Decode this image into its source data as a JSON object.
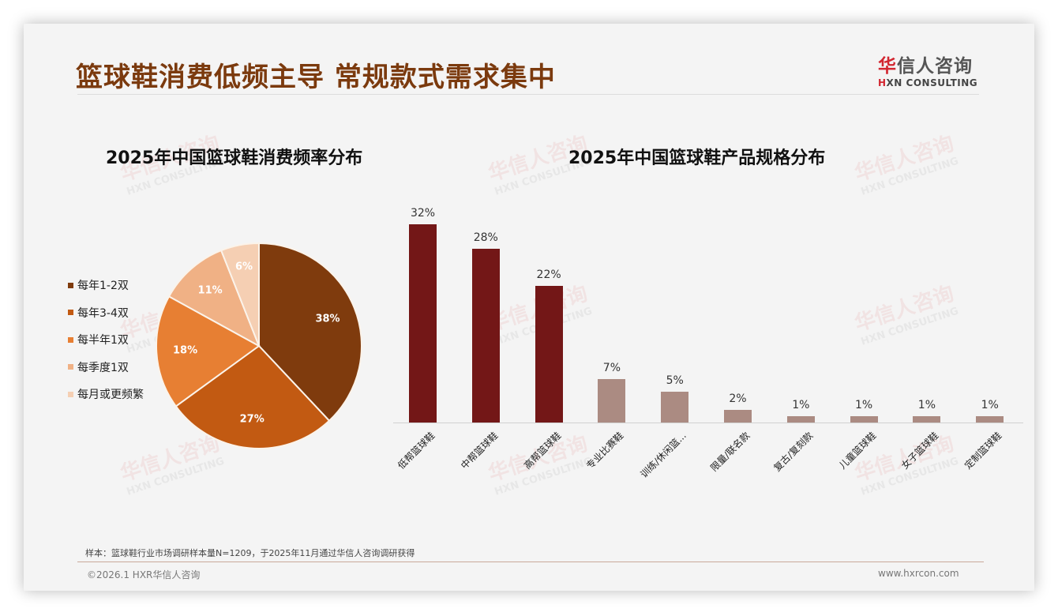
{
  "header": {
    "title": "篮球鞋消费低频主导 常规款式需求集中",
    "logo_cn_first": "华",
    "logo_cn_rest": "信人咨询",
    "logo_en_first": "H",
    "logo_en_rest": "XN CONSULTING"
  },
  "watermark": {
    "cn": "华信人咨询",
    "en": "HXN CONSULTING"
  },
  "pie_chart": {
    "title": "2025年中国篮球鞋消费频率分布"
  },
  "bar_chart": {
    "title": "2025年中国篮球鞋产品规格分布"
  },
  "chart_data": [
    {
      "type": "pie",
      "title": "2025年中国篮球鞋消费频率分布",
      "legend_position": "left",
      "categories": [
        "每年1-2双",
        "每年3-4双",
        "每半年1双",
        "每季度1双",
        "每月或更频繁"
      ],
      "values": [
        38,
        27,
        18,
        11,
        6
      ],
      "labels": [
        "38%",
        "27%",
        "18%",
        "11%",
        "6%"
      ],
      "colors": [
        "#7f3b0d",
        "#c25a12",
        "#e77f33",
        "#f0b185",
        "#f5cfb3"
      ]
    },
    {
      "type": "bar",
      "title": "2025年中国篮球鞋产品规格分布",
      "xlabel": "",
      "ylabel": "",
      "grid": false,
      "categories": [
        "低帮篮球鞋",
        "中帮篮球鞋",
        "高帮篮球鞋",
        "专业比赛鞋",
        "训练/休闲篮...",
        "限量/联名款",
        "复古/复刻款",
        "儿童篮球鞋",
        "女子篮球鞋",
        "定制篮球鞋"
      ],
      "values": [
        32,
        28,
        22,
        7,
        5,
        2,
        1,
        1,
        1,
        1
      ],
      "labels": [
        "32%",
        "28%",
        "22%",
        "7%",
        "5%",
        "2%",
        "1%",
        "1%",
        "1%",
        "1%"
      ],
      "colors": [
        "#731717",
        "#731717",
        "#731717",
        "#ab8b82",
        "#ab8b82",
        "#ab8b82",
        "#ab8b82",
        "#ab8b82",
        "#ab8b82",
        "#ab8b82"
      ],
      "ylim": [
        0,
        35
      ]
    }
  ],
  "footer": {
    "footnote": "样本：篮球鞋行业市场调研样本量N=1209，于2025年11月通过华信人咨询调研获得",
    "copyright": "©2026.1 HXR华信人咨询",
    "website": "www.hxrcon.com"
  }
}
